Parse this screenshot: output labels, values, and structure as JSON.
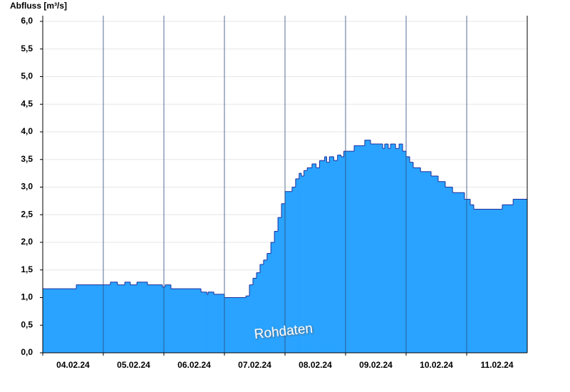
{
  "chart_data": {
    "type": "step-area",
    "y_label": "Abfluss [m³/s]",
    "annotation": "Rohdaten",
    "color": "#29a3ff",
    "line_color": "#1f2f9c",
    "xlim": [
      0,
      192
    ],
    "xticks": [
      {
        "value": 0,
        "label": "04.02.24"
      },
      {
        "value": 24,
        "label": "05.02.24"
      },
      {
        "value": 48,
        "label": "06.02.24"
      },
      {
        "value": 72,
        "label": "07.02.24"
      },
      {
        "value": 96,
        "label": "08.02.24"
      },
      {
        "value": 120,
        "label": "09.02.24"
      },
      {
        "value": 144,
        "label": "10.02.24"
      },
      {
        "value": 168,
        "label": "11.02.24"
      }
    ],
    "ylim": [
      0,
      6
    ],
    "yticks": [
      {
        "value": 0,
        "label": "0,0"
      },
      {
        "value": 0.5,
        "label": "0,5"
      },
      {
        "value": 1,
        "label": "1,0"
      },
      {
        "value": 1.5,
        "label": "1,5"
      },
      {
        "value": 2,
        "label": "2,0"
      },
      {
        "value": 2.5,
        "label": "2,5"
      },
      {
        "value": 3,
        "label": "3,0"
      },
      {
        "value": 3.5,
        "label": "3,5"
      },
      {
        "value": 4,
        "label": "4,0"
      },
      {
        "value": 4.5,
        "label": "4,5"
      },
      {
        "value": 5,
        "label": "5,0"
      },
      {
        "value": 5.5,
        "label": "5,5"
      },
      {
        "value": 6,
        "label": "6,0"
      }
    ],
    "grid": true,
    "x": [
      0,
      13.3,
      26.8,
      29.6,
      32.5,
      34.7,
      37.3,
      41.5,
      47.4,
      48.5,
      50.8,
      62.7,
      65.0,
      65.5,
      67.8,
      72.0,
      80.5,
      81.9,
      83.3,
      84.7,
      86.1,
      87.5,
      88.9,
      90.4,
      91.8,
      93.2,
      94.6,
      96.0,
      98.8,
      100.2,
      101.6,
      102.5,
      103.5,
      104.8,
      106.7,
      108.3,
      109.7,
      111.7,
      112.5,
      113.6,
      115.3,
      116.8,
      118.2,
      119.3,
      123.4,
      127.6,
      129.9,
      134.7,
      135.5,
      136.9,
      137.8,
      139.8,
      141.2,
      142.6,
      144.0,
      145.4,
      146.8,
      149.7,
      153.9,
      156.7,
      159.5,
      162.4,
      167.1,
      169.4,
      170.8,
      182.1,
      186.4
    ],
    "values": [
      1.16,
      1.23,
      1.28,
      1.23,
      1.28,
      1.23,
      1.28,
      1.23,
      1.19,
      1.23,
      1.16,
      1.1,
      1.06,
      1.1,
      1.06,
      1.0,
      1.03,
      1.23,
      1.35,
      1.45,
      1.6,
      1.68,
      1.8,
      2.0,
      2.2,
      2.45,
      2.7,
      2.92,
      3.0,
      3.15,
      3.25,
      3.2,
      3.3,
      3.35,
      3.42,
      3.35,
      3.48,
      3.55,
      3.45,
      3.55,
      3.48,
      3.58,
      3.55,
      3.65,
      3.75,
      3.85,
      3.78,
      3.7,
      3.78,
      3.7,
      3.78,
      3.7,
      3.78,
      3.65,
      3.55,
      3.45,
      3.35,
      3.28,
      3.2,
      3.1,
      3.0,
      2.9,
      2.78,
      2.68,
      2.6,
      2.68,
      2.78
    ]
  }
}
